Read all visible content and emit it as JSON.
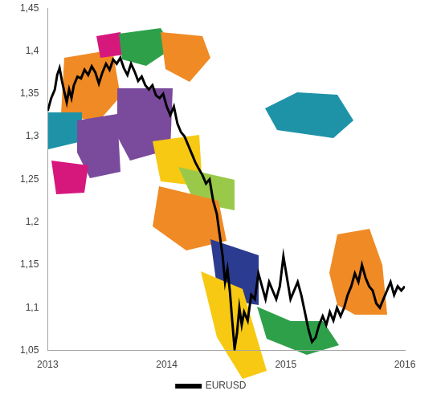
{
  "chart_data": {
    "type": "line",
    "x": [
      2013.0,
      2013.03,
      2013.06,
      2013.08,
      2013.1,
      2013.12,
      2013.14,
      2013.16,
      2013.18,
      2013.2,
      2013.22,
      2013.25,
      2013.28,
      2013.31,
      2013.34,
      2013.37,
      2013.4,
      2013.43,
      2013.46,
      2013.49,
      2013.52,
      2013.55,
      2013.58,
      2013.61,
      2013.64,
      2013.67,
      2013.7,
      2013.73,
      2013.76,
      2013.79,
      2013.82,
      2013.85,
      2013.88,
      2013.91,
      2013.94,
      2013.97,
      2014.0,
      2014.03,
      2014.06,
      2014.09,
      2014.12,
      2014.15,
      2014.18,
      2014.21,
      2014.24,
      2014.27,
      2014.3,
      2014.33,
      2014.36,
      2014.39,
      2014.42,
      2014.45,
      2014.47,
      2014.49,
      2014.51,
      2014.53,
      2014.55,
      2014.57,
      2014.59,
      2014.61,
      2014.63,
      2014.65,
      2014.68,
      2014.71,
      2014.74,
      2014.77,
      2014.8,
      2014.83,
      2014.86,
      2014.89,
      2014.92,
      2014.95,
      2014.98,
      2015.01,
      2015.04,
      2015.07,
      2015.1,
      2015.13,
      2015.16,
      2015.19,
      2015.22,
      2015.25,
      2015.28,
      2015.31,
      2015.34,
      2015.37,
      2015.4,
      2015.43,
      2015.46,
      2015.49,
      2015.52,
      2015.55,
      2015.58,
      2015.61,
      2015.64,
      2015.67,
      2015.7,
      2015.73,
      2015.76,
      2015.79,
      2015.82,
      2015.85,
      2015.88,
      2015.91,
      2015.94,
      2015.97,
      2016.0
    ],
    "series": [
      {
        "name": "EURUSD",
        "color": "#000000",
        "values": [
          1.33,
          1.345,
          1.355,
          1.372,
          1.38,
          1.365,
          1.352,
          1.34,
          1.355,
          1.345,
          1.36,
          1.37,
          1.368,
          1.378,
          1.372,
          1.382,
          1.375,
          1.362,
          1.375,
          1.385,
          1.378,
          1.39,
          1.385,
          1.392,
          1.38,
          1.372,
          1.385,
          1.376,
          1.365,
          1.37,
          1.36,
          1.355,
          1.36,
          1.348,
          1.345,
          1.35,
          1.335,
          1.325,
          1.335,
          1.315,
          1.305,
          1.3,
          1.29,
          1.28,
          1.27,
          1.262,
          1.255,
          1.245,
          1.25,
          1.225,
          1.21,
          1.18,
          1.16,
          1.13,
          1.145,
          1.12,
          1.085,
          1.052,
          1.07,
          1.1,
          1.08,
          1.095,
          1.085,
          1.115,
          1.11,
          1.14,
          1.125,
          1.11,
          1.13,
          1.12,
          1.11,
          1.125,
          1.16,
          1.135,
          1.11,
          1.12,
          1.13,
          1.115,
          1.095,
          1.075,
          1.06,
          1.065,
          1.08,
          1.09,
          1.08,
          1.095,
          1.085,
          1.1,
          1.09,
          1.1,
          1.115,
          1.125,
          1.14,
          1.13,
          1.15,
          1.135,
          1.125,
          1.12,
          1.105,
          1.1,
          1.11,
          1.12,
          1.13,
          1.115,
          1.125,
          1.12,
          1.125
        ]
      }
    ],
    "xlim": [
      2013,
      2016
    ],
    "xticks": [
      2013,
      2014,
      2015,
      2016
    ],
    "ylim": [
      1.05,
      1.45
    ],
    "yticks": [
      {
        "value": 1.05,
        "label": "1,05"
      },
      {
        "value": 1.1,
        "label": "1,1"
      },
      {
        "value": 1.15,
        "label": "1,15"
      },
      {
        "value": 1.2,
        "label": "1,2"
      },
      {
        "value": 1.25,
        "label": "1,25"
      },
      {
        "value": 1.3,
        "label": "1,3"
      },
      {
        "value": 1.35,
        "label": "1,35"
      },
      {
        "value": 1.4,
        "label": "1,4"
      },
      {
        "value": 1.45,
        "label": "1,45"
      }
    ],
    "grid": false,
    "legend": "bottom"
  }
}
